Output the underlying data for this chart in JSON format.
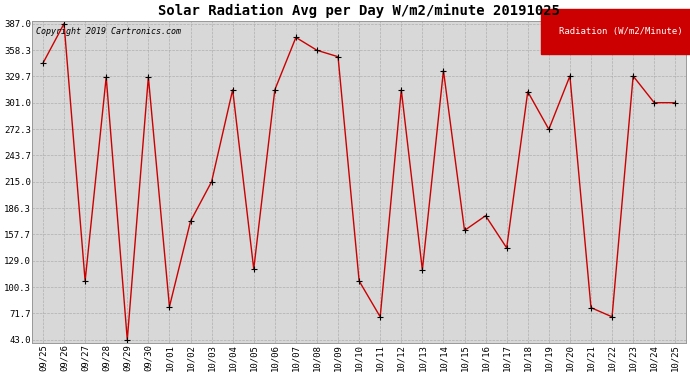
{
  "title": "Solar Radiation Avg per Day W/m2/minute 20191025",
  "copyright_text": "Copyright 2019 Cartronics.com",
  "legend_label": "Radiation (W/m2/Minute)",
  "dates": [
    "09/25",
    "09/26",
    "09/27",
    "09/28",
    "09/29",
    "09/30",
    "10/01",
    "10/02",
    "10/03",
    "10/04",
    "10/05",
    "10/06",
    "10/07",
    "10/08",
    "10/09",
    "10/10",
    "10/11",
    "10/12",
    "10/13",
    "10/14",
    "10/15",
    "10/16",
    "10/17",
    "10/18",
    "10/19",
    "10/20",
    "10/21",
    "10/22",
    "10/23",
    "10/24",
    "10/25"
  ],
  "values": [
    344,
    387,
    107,
    329,
    43,
    329,
    79,
    172,
    215,
    315,
    120,
    315,
    372,
    358,
    351,
    107,
    68,
    315,
    119,
    336,
    162,
    178,
    143,
    313,
    272,
    330,
    78,
    68,
    330,
    301,
    301
  ],
  "line_color": "#cc0000",
  "marker_color": "#000000",
  "bg_color": "#ffffff",
  "plot_bg_color": "#d8d8d8",
  "grid_color": "#aaaaaa",
  "legend_bg": "#cc0000",
  "legend_text_color": "#ffffff",
  "yticks": [
    43.0,
    71.7,
    100.3,
    129.0,
    157.7,
    186.3,
    215.0,
    243.7,
    272.3,
    301.0,
    329.7,
    358.3,
    387.0
  ],
  "ylim_min": 43.0,
  "ylim_max": 387.0,
  "title_fontsize": 10,
  "tick_fontsize": 6.5,
  "copyright_fontsize": 6,
  "legend_fontsize": 6.5
}
